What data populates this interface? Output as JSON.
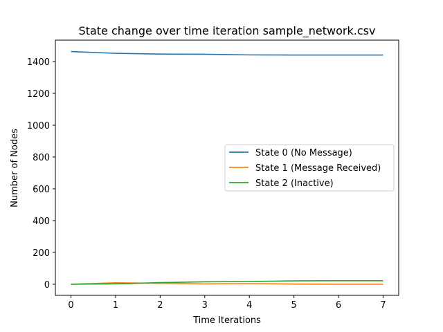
{
  "chart_data": {
    "type": "line",
    "title": "State change over time iteration sample_network.csv",
    "xlabel": "Time Iterations",
    "ylabel": "Number of Nodes",
    "x": [
      0,
      1,
      2,
      3,
      4,
      5,
      6,
      7
    ],
    "xlim": [
      -0.35,
      7.35
    ],
    "ylim": [
      -70,
      1535
    ],
    "xticks": [
      "0",
      "1",
      "2",
      "3",
      "4",
      "5",
      "6",
      "7"
    ],
    "yticks": [
      "0",
      "200",
      "400",
      "600",
      "800",
      "1000",
      "1200",
      "1400"
    ],
    "grid": false,
    "legend_position": "center-right",
    "series": [
      {
        "name": "State 0 (No Message)",
        "color": "#1f77b4",
        "values": [
          1463,
          1452,
          1447,
          1446,
          1442,
          1441,
          1441,
          1441
        ]
      },
      {
        "name": "State 1 (Message Received)",
        "color": "#ff7f0e",
        "values": [
          0,
          9,
          6,
          2,
          4,
          1,
          0,
          0
        ]
      },
      {
        "name": "State 2 (Inactive)",
        "color": "#2ca02c",
        "values": [
          0,
          2,
          10,
          15,
          17,
          21,
          22,
          22
        ]
      }
    ]
  }
}
